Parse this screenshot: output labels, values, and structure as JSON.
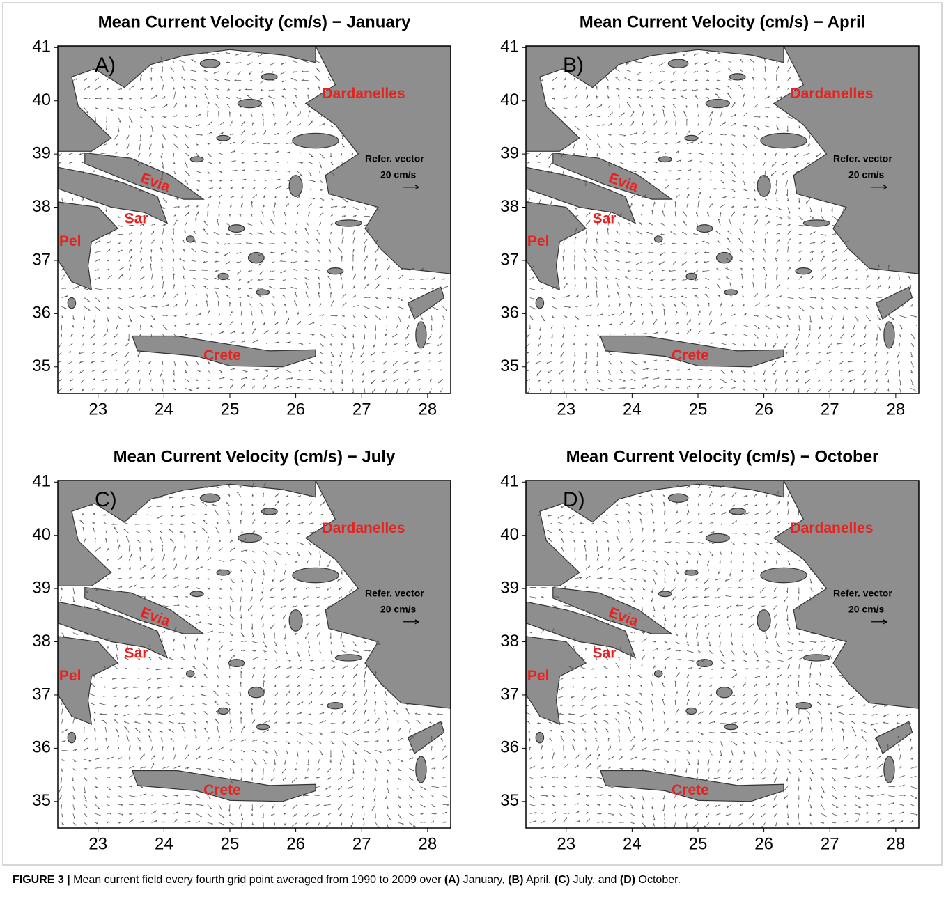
{
  "chart_data": [
    {
      "type": "vector-map",
      "title": "Mean Current Velocity (cm/s) − January",
      "panel_label": "A)",
      "xlim": [
        22.39,
        28.35
      ],
      "ylim": [
        34.5,
        41.03
      ],
      "xticks": [
        23,
        24,
        25,
        26,
        27,
        28
      ],
      "yticks": [
        35,
        36,
        37,
        38,
        39,
        40,
        41
      ],
      "annotations": [
        "Dardanelles",
        "Evia",
        "Sar",
        "Pel",
        "Crete"
      ],
      "reference_title": "Refer. vector",
      "reference_vector": {
        "value": 20,
        "label": "20 cm/s"
      }
    },
    {
      "type": "vector-map",
      "title": "Mean Current Velocity (cm/s) − April",
      "panel_label": "B)",
      "xlim": [
        22.39,
        28.35
      ],
      "ylim": [
        34.5,
        41.03
      ],
      "xticks": [
        23,
        24,
        25,
        26,
        27,
        28
      ],
      "yticks": [
        35,
        36,
        37,
        38,
        39,
        40,
        41
      ],
      "annotations": [
        "Dardanelles",
        "Evia",
        "Sar",
        "Pel",
        "Crete"
      ],
      "reference_title": "Refer. vector",
      "reference_vector": {
        "value": 20,
        "label": "20 cm/s"
      }
    },
    {
      "type": "vector-map",
      "title": "Mean Current Velocity (cm/s) − July",
      "panel_label": "C)",
      "xlim": [
        22.39,
        28.35
      ],
      "ylim": [
        34.5,
        41.03
      ],
      "xticks": [
        23,
        24,
        25,
        26,
        27,
        28
      ],
      "yticks": [
        35,
        36,
        37,
        38,
        39,
        40,
        41
      ],
      "annotations": [
        "Dardanelles",
        "Evia",
        "Sar",
        "Pel",
        "Crete"
      ],
      "reference_title": "Refer. vector",
      "reference_vector": {
        "value": 20,
        "label": "20 cm/s"
      }
    },
    {
      "type": "vector-map",
      "title": "Mean Current Velocity (cm/s) − October",
      "panel_label": "D)",
      "xlim": [
        22.39,
        28.35
      ],
      "ylim": [
        34.5,
        41.03
      ],
      "xticks": [
        23,
        24,
        25,
        26,
        27,
        28
      ],
      "yticks": [
        35,
        36,
        37,
        38,
        39,
        40,
        41
      ],
      "annotations": [
        "Dardanelles",
        "Evia",
        "Sar",
        "Pel",
        "Crete"
      ],
      "reference_title": "Refer. vector",
      "reference_vector": {
        "value": 20,
        "label": "20 cm/s"
      }
    }
  ],
  "caption": [
    "FIGURE 3 |",
    " Mean current field every fourth grid point averaged from 1990 to 2009 over ",
    "(A)",
    " January, ",
    "(B)",
    " April, ",
    "(C)",
    " July, and ",
    "(D)",
    " October."
  ]
}
